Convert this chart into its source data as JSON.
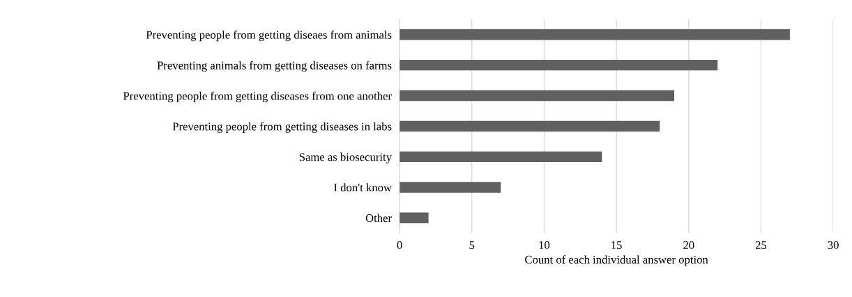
{
  "chart_data": {
    "type": "bar",
    "orientation": "horizontal",
    "categories": [
      "Preventing people from getting diseaes from animals",
      "Preventing animals from getting diseases on farms",
      "Preventing people from getting diseases from one another",
      "Preventing people from getting diseases in labs",
      "Same as biosecurity",
      "I don't know",
      "Other"
    ],
    "values": [
      27,
      22,
      19,
      18,
      14,
      7,
      2
    ],
    "color": "#606060",
    "xlabel": "Count of each individual answer option",
    "xlim": [
      0,
      30
    ],
    "xticks": [
      0,
      5,
      10,
      15,
      20,
      25,
      30
    ],
    "grid": "x",
    "legend": false
  }
}
